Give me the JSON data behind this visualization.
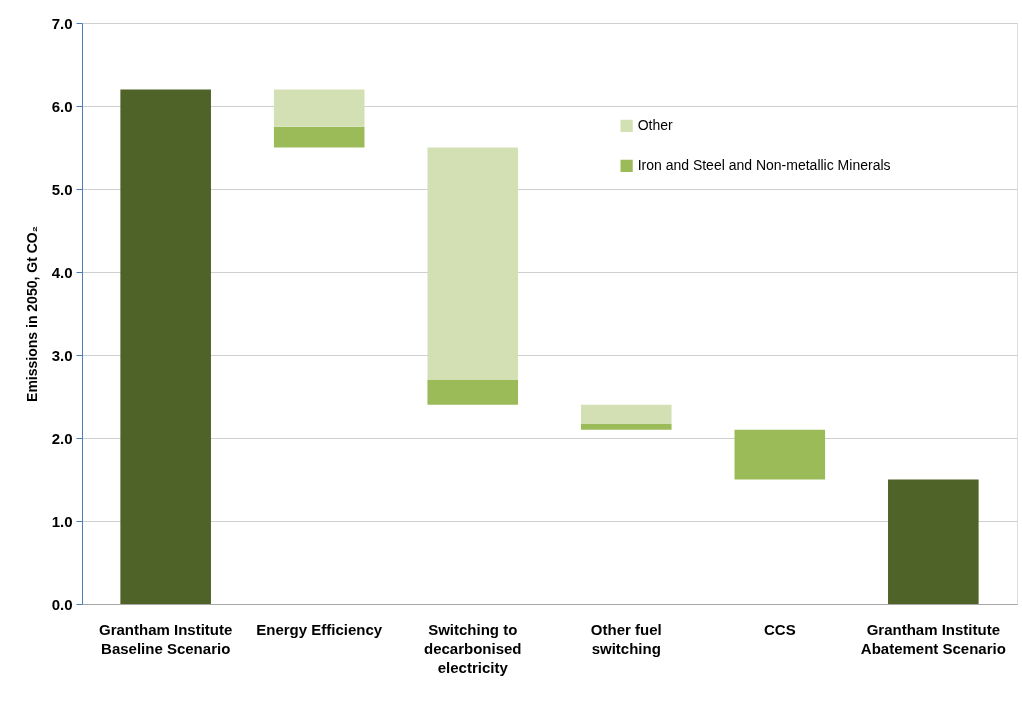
{
  "chart_data": {
    "type": "bar",
    "stacked": true,
    "ylabel": "Emissions in 2050, Gt CO₂",
    "categories": [
      "Grantham Institute Baseline Scenario",
      "Energy Efficiency",
      "Switching to decarbonised electricity",
      "Other fuel switching",
      "CCS",
      "Grantham Institute Abatement Scenario"
    ],
    "series": [
      {
        "color": "#4f6228",
        "values": [
          6.2,
          null,
          null,
          null,
          null,
          1.5
        ]
      },
      {
        "name": "Iron and Steel and Non-metallic Minerals",
        "color": "#9bbb59",
        "base": [
          null,
          5.5,
          2.4,
          2.1,
          1.5,
          null
        ],
        "values": [
          null,
          0.25,
          0.3,
          0.07,
          0.6,
          null
        ]
      },
      {
        "name": "Other",
        "color": "#d3e0b4",
        "base": [
          null,
          5.75,
          2.7,
          2.17,
          null,
          null
        ],
        "values": [
          null,
          0.45,
          2.8,
          0.23,
          null,
          null
        ]
      }
    ],
    "ylim": [
      0,
      7
    ],
    "yticks": [
      {
        "value": 0,
        "label": "0.0"
      },
      {
        "value": 1,
        "label": "1.0"
      },
      {
        "value": 2,
        "label": "2.0"
      },
      {
        "value": 3,
        "label": "3.0"
      },
      {
        "value": 4,
        "label": "4.0"
      },
      {
        "value": 5,
        "label": "5.0"
      },
      {
        "value": 6,
        "label": "6.0"
      },
      {
        "value": 7,
        "label": "7.0"
      }
    ],
    "grid": "y",
    "legend": "top right"
  }
}
